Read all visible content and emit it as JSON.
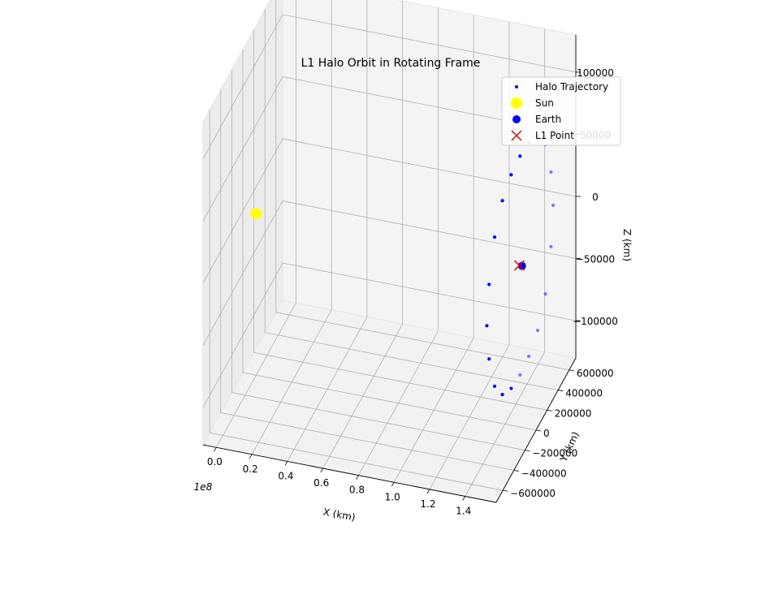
{
  "chart_data": {
    "type": "scatter",
    "title": "L1 Halo Orbit in Rotating Frame",
    "xlabel": "X (km)",
    "ylabel": "Y (km)",
    "zlabel": "Z (km)",
    "x_offset_label": "1e8",
    "x_ticks": [
      "0.0",
      "0.2",
      "0.4",
      "0.6",
      "0.8",
      "1.0",
      "1.2",
      "1.4"
    ],
    "y_ticks": [
      "600000",
      "400000",
      "200000",
      "0",
      "−200000",
      "−400000",
      "−600000"
    ],
    "z_ticks": [
      "100000",
      "50000",
      "0",
      "−50000",
      "−100000"
    ],
    "grid": true,
    "legend_position": "top-right",
    "legend": [
      {
        "label": "Halo Trajectory",
        "marker": "small-dot",
        "color": "#0000ff"
      },
      {
        "label": "Sun",
        "marker": "large-dot",
        "color": "#ffff00"
      },
      {
        "label": "Earth",
        "marker": "medium-dot",
        "color": "#0000ff"
      },
      {
        "label": "L1 Point",
        "marker": "x",
        "color": "#dd0000"
      }
    ],
    "series": [
      {
        "name": "Halo Trajectory",
        "color": "#0000ff",
        "points": [
          {
            "x": 148500000,
            "y": -600000,
            "z": 0
          },
          {
            "x": 148500000,
            "y": -560000,
            "z": 30000
          },
          {
            "x": 148500000,
            "y": -460000,
            "z": 60000
          },
          {
            "x": 148500000,
            "y": -320000,
            "z": 78000
          },
          {
            "x": 148500000,
            "y": -160000,
            "z": 86000
          },
          {
            "x": 148500000,
            "y": 0,
            "z": 88000
          },
          {
            "x": 148500000,
            "y": 160000,
            "z": 86000
          },
          {
            "x": 148500000,
            "y": 320000,
            "z": 78000
          },
          {
            "x": 148500000,
            "y": 460000,
            "z": 60000
          },
          {
            "x": 148500000,
            "y": 560000,
            "z": 30000
          },
          {
            "x": 148500000,
            "y": 600000,
            "z": 0
          },
          {
            "x": 148500000,
            "y": 560000,
            "z": -30000
          },
          {
            "x": 148500000,
            "y": 460000,
            "z": -60000
          },
          {
            "x": 148500000,
            "y": 320000,
            "z": -78000
          },
          {
            "x": 148500000,
            "y": 160000,
            "z": -86000
          },
          {
            "x": 148500000,
            "y": 0,
            "z": -88000
          },
          {
            "x": 148500000,
            "y": -160000,
            "z": -86000
          },
          {
            "x": 148500000,
            "y": -320000,
            "z": -78000
          },
          {
            "x": 148500000,
            "y": -460000,
            "z": -60000
          },
          {
            "x": 148500000,
            "y": -560000,
            "z": -30000
          }
        ]
      },
      {
        "name": "Sun",
        "color": "#ffff00",
        "points": [
          {
            "x": 0,
            "y": 0,
            "z": 0
          }
        ]
      },
      {
        "name": "Earth",
        "color": "#0000ff",
        "points": [
          {
            "x": 149600000,
            "y": 0,
            "z": 0
          }
        ]
      },
      {
        "name": "L1 Point",
        "color": "#dd0000",
        "points": [
          {
            "x": 148100000,
            "y": 0,
            "z": 0
          }
        ]
      }
    ]
  }
}
